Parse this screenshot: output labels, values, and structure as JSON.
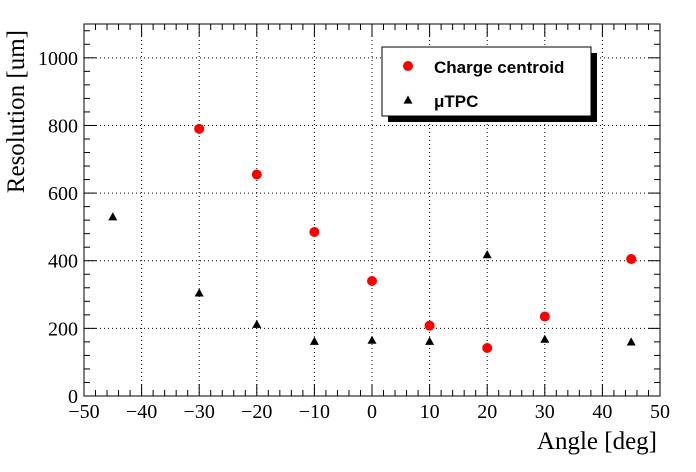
{
  "chart_data": {
    "type": "scatter",
    "xlabel": "Angle [deg]",
    "ylabel": "Resolution [um]",
    "xlim": [
      -50,
      50
    ],
    "ylim": [
      0,
      1100
    ],
    "x_ticks": [
      -50,
      -40,
      -30,
      -20,
      -10,
      0,
      10,
      20,
      30,
      40,
      50
    ],
    "y_ticks": [
      0,
      200,
      400,
      600,
      800,
      1000
    ],
    "grid": true,
    "legend_position": "top-right",
    "series": [
      {
        "name": "Charge centroid",
        "marker": "circle",
        "color": "#ff0000",
        "x": [
          -30,
          -20,
          -10,
          0,
          10,
          20,
          30,
          45
        ],
        "y": [
          790,
          655,
          485,
          340,
          208,
          142,
          235,
          405
        ]
      },
      {
        "name": "μTPC",
        "marker": "triangle",
        "color": "#000000",
        "x": [
          -45,
          -30,
          -20,
          -10,
          0,
          10,
          20,
          30,
          45
        ],
        "y": [
          530,
          305,
          212,
          162,
          165,
          162,
          418,
          168,
          160
        ]
      }
    ]
  }
}
